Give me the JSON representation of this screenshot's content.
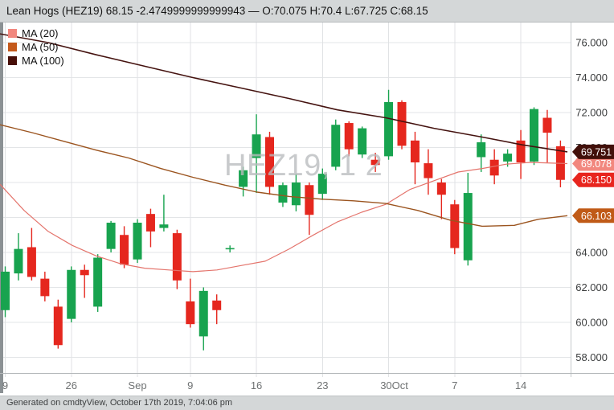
{
  "window": {
    "title": "Lean Hogs (HEZ19) 68.15 -2.4749999999999943 — O:70.075 H:70.4 L:67.725 C:68.15",
    "footer": "Generated on cmdtyView, October 17th 2019, 7:04:06 pm"
  },
  "watermark": "HEZ19, 1 2",
  "legend": {
    "items": [
      {
        "label": "MA (20)",
        "color": "#F2877E"
      },
      {
        "label": "MA (50)",
        "color": "#C4591B"
      },
      {
        "label": "MA (100)",
        "color": "#470E07"
      }
    ]
  },
  "chart_data": {
    "type": "candlestick",
    "symbol": "HEZ19",
    "title": "Lean Hogs (HEZ19)",
    "last_price": 68.15,
    "change": -2.4749999999999943,
    "open": 70.075,
    "high": 70.4,
    "low": 67.725,
    "close": 68.15,
    "ylim": [
      57.0,
      77.15
    ],
    "grid": true,
    "legend_position": "top-left",
    "y_ticks": [
      {
        "v": 76,
        "label": "76.000"
      },
      {
        "v": 74,
        "label": "74.000"
      },
      {
        "v": 72,
        "label": "72.000"
      },
      {
        "v": 70,
        "label": "70.000"
      },
      {
        "v": 68,
        "label": "68.000"
      },
      {
        "v": 66,
        "label": "66.000"
      },
      {
        "v": 64,
        "label": "64.000"
      },
      {
        "v": 62,
        "label": "62.000"
      },
      {
        "v": 60,
        "label": "60.000"
      },
      {
        "v": 58,
        "label": "58.000"
      }
    ],
    "x_ticks": [
      {
        "i": 0,
        "label": "9",
        "dx": 0
      },
      {
        "i": 5,
        "label": "26",
        "dx": 0
      },
      {
        "i": 10,
        "label": "Sep",
        "dx": 0
      },
      {
        "i": 14,
        "label": "9",
        "dx": 0
      },
      {
        "i": 19,
        "label": "16",
        "dx": 0
      },
      {
        "i": 24,
        "label": "23",
        "dx": 0
      },
      {
        "i": 29,
        "label": "30Oct",
        "dx": 7
      },
      {
        "i": 34,
        "label": "7",
        "dx": 0
      },
      {
        "i": 39,
        "label": "14",
        "dx": 0
      }
    ],
    "candle_colors": {
      "up": "#18A34F",
      "down": "#E5271E"
    },
    "candles": [
      [
        60.7,
        63.2,
        60.3,
        62.9
      ],
      [
        62.8,
        65.1,
        62.4,
        64.2
      ],
      [
        64.3,
        65.4,
        62.4,
        62.6
      ],
      [
        62.5,
        62.9,
        61.2,
        61.5
      ],
      [
        60.9,
        61.3,
        58.5,
        58.7
      ],
      [
        60.2,
        63.2,
        60.0,
        63.0
      ],
      [
        63.0,
        63.3,
        61.4,
        62.7
      ],
      [
        60.9,
        63.9,
        60.6,
        63.7
      ],
      [
        64.2,
        65.8,
        64.0,
        65.7
      ],
      [
        65.0,
        65.5,
        63.1,
        63.3
      ],
      [
        63.6,
        65.9,
        63.4,
        65.7
      ],
      [
        66.2,
        66.5,
        64.3,
        65.2
      ],
      [
        65.4,
        67.3,
        65.2,
        65.6
      ],
      [
        65.1,
        65.3,
        61.9,
        62.4
      ],
      [
        61.2,
        62.5,
        59.7,
        59.9
      ],
      [
        59.2,
        62.0,
        58.4,
        61.8
      ],
      [
        61.25,
        61.6,
        59.9,
        60.7
      ],
      [
        64.2,
        64.4,
        64.0,
        64.25
      ],
      [
        67.75,
        68.9,
        67.2,
        68.7
      ],
      [
        69.4,
        71.9,
        67.4,
        70.75
      ],
      [
        70.6,
        70.9,
        67.3,
        67.75
      ],
      [
        66.85,
        68.0,
        66.6,
        67.85
      ],
      [
        66.7,
        68.5,
        66.35,
        68.0
      ],
      [
        67.85,
        68.0,
        65.0,
        66.15
      ],
      [
        67.35,
        68.8,
        67.0,
        68.5
      ],
      [
        68.9,
        71.6,
        68.7,
        71.3
      ],
      [
        71.4,
        71.5,
        69.5,
        69.9
      ],
      [
        69.6,
        71.2,
        69.4,
        71.1
      ],
      [
        69.3,
        69.7,
        68.6,
        69.0
      ],
      [
        69.5,
        73.3,
        69.3,
        72.6
      ],
      [
        72.6,
        72.7,
        69.9,
        70.1
      ],
      [
        70.4,
        70.9,
        67.9,
        69.15
      ],
      [
        69.1,
        69.9,
        67.3,
        68.25
      ],
      [
        68.0,
        68.2,
        65.9,
        67.3
      ],
      [
        66.75,
        67.0,
        63.9,
        64.25
      ],
      [
        63.55,
        68.55,
        63.25,
        67.4
      ],
      [
        69.45,
        70.75,
        68.6,
        70.3
      ],
      [
        69.3,
        69.9,
        67.9,
        68.4
      ],
      [
        69.2,
        69.9,
        68.9,
        69.65
      ],
      [
        70.4,
        71.0,
        68.2,
        69.15
      ],
      [
        69.2,
        72.3,
        69.0,
        72.2
      ],
      [
        71.7,
        72.15,
        69.15,
        70.85
      ],
      [
        70.075,
        70.4,
        67.725,
        68.15
      ]
    ],
    "ma_lines": [
      {
        "name": "MA (20)",
        "color": "#E4746C",
        "width": 1.2,
        "points": [
          [
            0,
            67.9
          ],
          [
            30,
            66.4
          ],
          [
            60,
            65.2
          ],
          [
            90,
            64.4
          ],
          [
            120,
            63.8
          ],
          [
            150,
            63.35
          ],
          [
            180,
            63.1
          ],
          [
            210,
            63.0
          ],
          [
            240,
            62.9
          ],
          [
            270,
            63.0
          ],
          [
            300,
            63.25
          ],
          [
            330,
            63.5
          ],
          [
            360,
            64.2
          ],
          [
            390,
            65.0
          ],
          [
            420,
            65.75
          ],
          [
            450,
            66.3
          ],
          [
            480,
            66.75
          ],
          [
            510,
            67.6
          ],
          [
            540,
            68.1
          ],
          [
            570,
            68.6
          ],
          [
            600,
            68.8
          ],
          [
            630,
            69.05
          ],
          [
            660,
            69.15
          ],
          [
            706,
            69.08
          ]
        ]
      },
      {
        "name": "MA (50)",
        "color": "#9B541F",
        "width": 1.4,
        "points": [
          [
            0,
            71.3
          ],
          [
            40,
            70.85
          ],
          [
            80,
            70.35
          ],
          [
            120,
            69.85
          ],
          [
            160,
            69.4
          ],
          [
            200,
            68.8
          ],
          [
            240,
            68.3
          ],
          [
            280,
            67.85
          ],
          [
            320,
            67.45
          ],
          [
            360,
            67.2
          ],
          [
            400,
            67.05
          ],
          [
            440,
            66.95
          ],
          [
            480,
            66.8
          ],
          [
            520,
            66.4
          ],
          [
            560,
            65.85
          ],
          [
            600,
            65.5
          ],
          [
            640,
            65.55
          ],
          [
            670,
            65.9
          ],
          [
            706,
            66.1
          ]
        ]
      },
      {
        "name": "MA (100)",
        "color": "#451310",
        "width": 1.6,
        "points": [
          [
            0,
            76.5
          ],
          [
            60,
            76.0
          ],
          [
            120,
            75.3
          ],
          [
            180,
            74.65
          ],
          [
            240,
            74.0
          ],
          [
            300,
            73.4
          ],
          [
            360,
            72.8
          ],
          [
            420,
            72.15
          ],
          [
            480,
            71.7
          ],
          [
            540,
            71.1
          ],
          [
            600,
            70.6
          ],
          [
            650,
            70.15
          ],
          [
            706,
            69.75
          ]
        ]
      }
    ],
    "price_badges": [
      {
        "label": "69.078",
        "v": 69.078,
        "color": "#F2877E"
      },
      {
        "label": "69.751",
        "v": 69.751,
        "color": "#42100A"
      },
      {
        "label": "68.150",
        "v": 68.15,
        "color": "#E8251E"
      },
      {
        "label": "66.103",
        "v": 66.103,
        "color": "#C05A17"
      }
    ]
  }
}
